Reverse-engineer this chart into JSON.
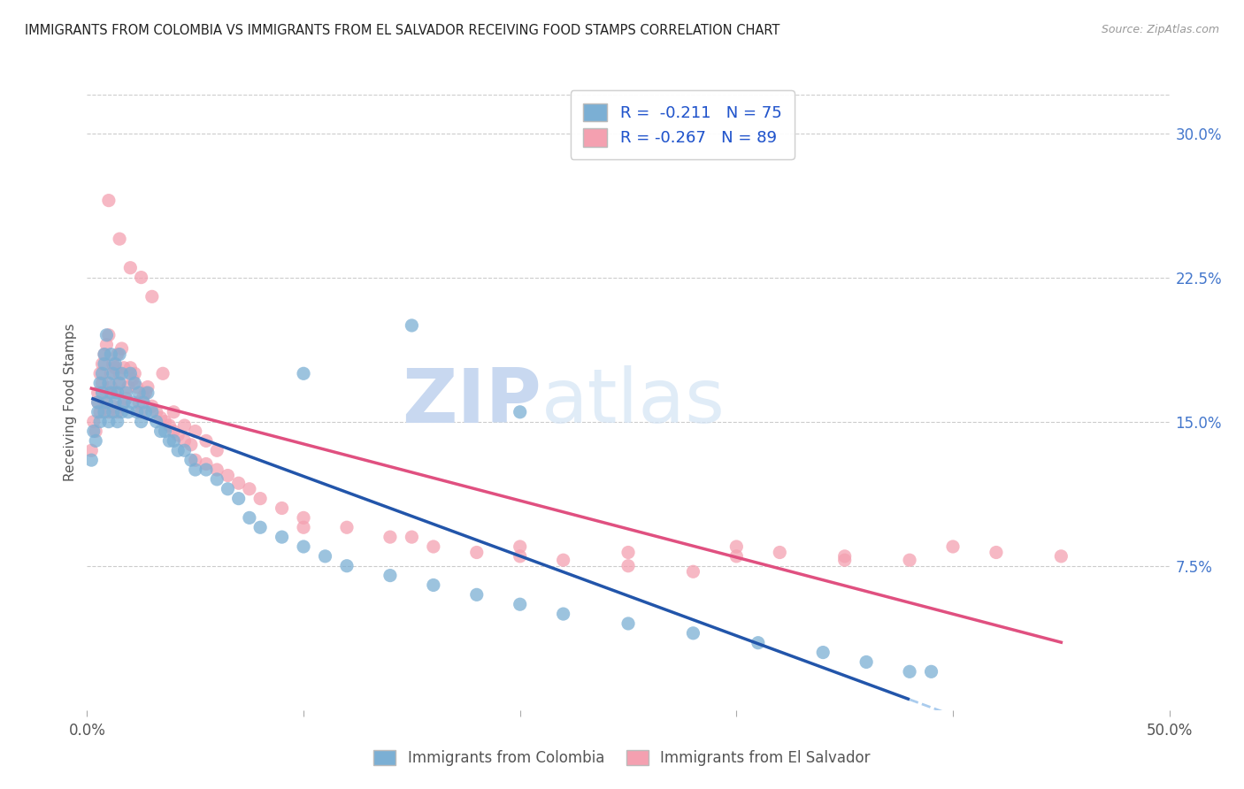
{
  "title": "IMMIGRANTS FROM COLOMBIA VS IMMIGRANTS FROM EL SALVADOR RECEIVING FOOD STAMPS CORRELATION CHART",
  "source": "Source: ZipAtlas.com",
  "ylabel": "Receiving Food Stamps",
  "xlim": [
    0.0,
    0.5
  ],
  "ylim": [
    0.0,
    0.32
  ],
  "ytick_labels": [
    "7.5%",
    "15.0%",
    "22.5%",
    "30.0%"
  ],
  "ytick_positions": [
    0.075,
    0.15,
    0.225,
    0.3
  ],
  "r_colombia": -0.211,
  "n_colombia": 75,
  "r_salvador": -0.267,
  "n_salvador": 89,
  "legend_label_colombia": "Immigrants from Colombia",
  "legend_label_salvador": "Immigrants from El Salvador",
  "color_colombia": "#7bafd4",
  "color_salvador": "#f4a0b0",
  "trendline_colombia_color": "#2255aa",
  "trendline_salvador_color": "#e05080",
  "trendline_dashed_color": "#aaccee",
  "watermark_zip": "ZIP",
  "watermark_atlas": "atlas",
  "watermark_color": "#c8d8f0",
  "background_color": "#ffffff",
  "grid_color": "#cccccc",
  "colombia_x": [
    0.002,
    0.003,
    0.004,
    0.005,
    0.005,
    0.006,
    0.006,
    0.007,
    0.007,
    0.008,
    0.008,
    0.008,
    0.009,
    0.009,
    0.01,
    0.01,
    0.011,
    0.011,
    0.012,
    0.012,
    0.013,
    0.013,
    0.014,
    0.014,
    0.015,
    0.015,
    0.016,
    0.016,
    0.017,
    0.018,
    0.019,
    0.02,
    0.021,
    0.022,
    0.023,
    0.024,
    0.025,
    0.026,
    0.027,
    0.028,
    0.03,
    0.032,
    0.034,
    0.036,
    0.038,
    0.04,
    0.042,
    0.045,
    0.048,
    0.05,
    0.055,
    0.06,
    0.065,
    0.07,
    0.075,
    0.08,
    0.09,
    0.1,
    0.11,
    0.12,
    0.14,
    0.16,
    0.18,
    0.2,
    0.22,
    0.25,
    0.28,
    0.31,
    0.34,
    0.36,
    0.39,
    0.1,
    0.15,
    0.2,
    0.38
  ],
  "colombia_y": [
    0.13,
    0.145,
    0.14,
    0.155,
    0.16,
    0.15,
    0.17,
    0.165,
    0.175,
    0.18,
    0.155,
    0.185,
    0.16,
    0.195,
    0.15,
    0.17,
    0.165,
    0.185,
    0.155,
    0.175,
    0.16,
    0.18,
    0.15,
    0.165,
    0.17,
    0.185,
    0.155,
    0.175,
    0.16,
    0.165,
    0.155,
    0.175,
    0.16,
    0.17,
    0.155,
    0.165,
    0.15,
    0.16,
    0.155,
    0.165,
    0.155,
    0.15,
    0.145,
    0.145,
    0.14,
    0.14,
    0.135,
    0.135,
    0.13,
    0.125,
    0.125,
    0.12,
    0.115,
    0.11,
    0.1,
    0.095,
    0.09,
    0.085,
    0.08,
    0.075,
    0.07,
    0.065,
    0.06,
    0.055,
    0.05,
    0.045,
    0.04,
    0.035,
    0.03,
    0.025,
    0.02,
    0.175,
    0.2,
    0.155,
    0.02
  ],
  "salvador_x": [
    0.002,
    0.003,
    0.004,
    0.005,
    0.005,
    0.006,
    0.006,
    0.007,
    0.007,
    0.008,
    0.008,
    0.009,
    0.009,
    0.01,
    0.01,
    0.011,
    0.011,
    0.012,
    0.012,
    0.013,
    0.013,
    0.014,
    0.014,
    0.015,
    0.015,
    0.016,
    0.016,
    0.017,
    0.018,
    0.019,
    0.02,
    0.021,
    0.022,
    0.023,
    0.024,
    0.025,
    0.026,
    0.027,
    0.028,
    0.03,
    0.032,
    0.034,
    0.036,
    0.038,
    0.04,
    0.042,
    0.045,
    0.048,
    0.05,
    0.055,
    0.06,
    0.065,
    0.07,
    0.075,
    0.08,
    0.09,
    0.1,
    0.12,
    0.14,
    0.16,
    0.18,
    0.2,
    0.22,
    0.25,
    0.28,
    0.3,
    0.32,
    0.35,
    0.38,
    0.4,
    0.42,
    0.45,
    0.01,
    0.015,
    0.02,
    0.025,
    0.03,
    0.035,
    0.04,
    0.045,
    0.05,
    0.055,
    0.06,
    0.1,
    0.15,
    0.2,
    0.25,
    0.3,
    0.35
  ],
  "salvador_y": [
    0.135,
    0.15,
    0.145,
    0.16,
    0.165,
    0.155,
    0.175,
    0.17,
    0.18,
    0.185,
    0.16,
    0.19,
    0.165,
    0.195,
    0.155,
    0.175,
    0.168,
    0.18,
    0.158,
    0.178,
    0.165,
    0.185,
    0.155,
    0.17,
    0.175,
    0.188,
    0.158,
    0.178,
    0.162,
    0.168,
    0.178,
    0.172,
    0.175,
    0.168,
    0.16,
    0.155,
    0.163,
    0.165,
    0.168,
    0.158,
    0.155,
    0.152,
    0.15,
    0.148,
    0.145,
    0.143,
    0.14,
    0.138,
    0.13,
    0.128,
    0.125,
    0.122,
    0.118,
    0.115,
    0.11,
    0.105,
    0.1,
    0.095,
    0.09,
    0.085,
    0.082,
    0.08,
    0.078,
    0.075,
    0.072,
    0.085,
    0.082,
    0.08,
    0.078,
    0.085,
    0.082,
    0.08,
    0.265,
    0.245,
    0.23,
    0.225,
    0.215,
    0.175,
    0.155,
    0.148,
    0.145,
    0.14,
    0.135,
    0.095,
    0.09,
    0.085,
    0.082,
    0.08,
    0.078
  ]
}
